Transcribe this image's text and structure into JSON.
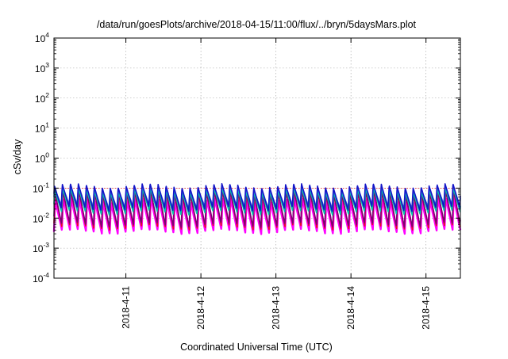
{
  "chart_data": {
    "type": "line",
    "title": "/data/run/goesPlots/archive/2018-04-15/11:00/flux/../bryn/5daysMars.plot",
    "xlabel": "Coordinated Universal Time (UTC)",
    "ylabel": "cSv/day",
    "yscale": "log",
    "ylim": [
      0.0001,
      10000
    ],
    "xlim": [
      "2018-04-10T01:00",
      "2018-04-15T11:00"
    ],
    "grid": true,
    "reference_line_y": 0.1,
    "y_ticks": [
      {
        "base": "10",
        "exp": "-4"
      },
      {
        "base": "10",
        "exp": "-3"
      },
      {
        "base": "10",
        "exp": "-2"
      },
      {
        "base": "10",
        "exp": "-1"
      },
      {
        "base": "10",
        "exp": "0"
      },
      {
        "base": "10",
        "exp": "1"
      },
      {
        "base": "10",
        "exp": "2"
      },
      {
        "base": "10",
        "exp": "3"
      },
      {
        "base": "10",
        "exp": "4"
      }
    ],
    "x_ticks": [
      "2018-4-11",
      "2018-4-12",
      "2018-4-13",
      "2018-4-14",
      "2018-4-15"
    ],
    "x_tick_dates": [
      "2018-04-11T00:00",
      "2018-04-12T00:00",
      "2018-04-13T00:00",
      "2018-04-14T00:00",
      "2018-04-15T00:00"
    ],
    "series": [
      {
        "color": "#ff00ff",
        "peak": 0.04,
        "trough": 0.0035,
        "phase_hours": 0.0
      },
      {
        "color": "#e8101a",
        "peak": 0.07,
        "trough": 0.0048,
        "phase_hours": 0.05
      },
      {
        "color": "#7a0078",
        "peak": 0.075,
        "trough": 0.0058,
        "phase_hours": 0.1
      },
      {
        "color": "#00c8a8",
        "peak": 0.085,
        "trough": 0.015,
        "phase_hours": 0.15
      },
      {
        "color": "#2e78d8",
        "peak": 0.1,
        "trough": 0.024,
        "phase_hours": 0.2
      },
      {
        "color": "#1414c8",
        "peak": 0.12,
        "trough": 0.02,
        "phase_hours": 0.25
      }
    ],
    "cycle_period_hours": 2.55,
    "cycle_rise_fraction": 0.15,
    "daily_modulation": 0.25
  }
}
